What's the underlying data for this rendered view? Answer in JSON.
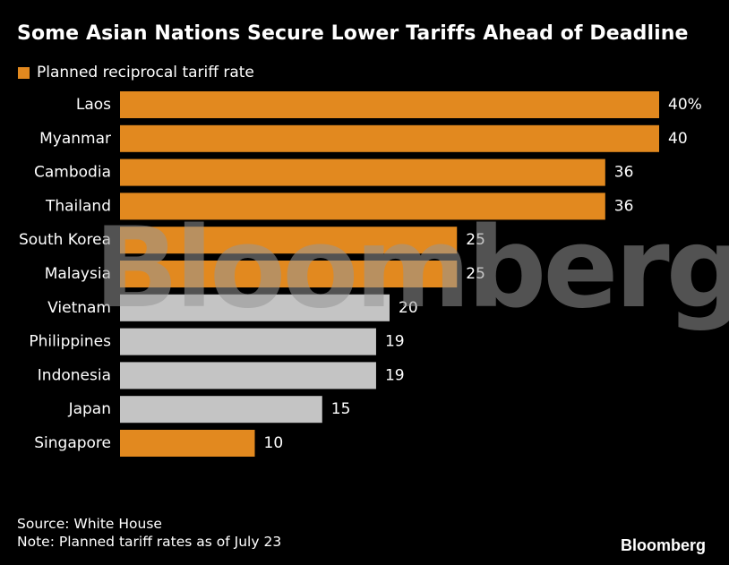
{
  "title": "Some Asian Nations Secure Lower Tariffs Ahead of Deadline",
  "legend": {
    "label": "Planned reciprocal tariff rate",
    "color": "#e2891f"
  },
  "watermark": "Bloomberg",
  "footer": {
    "source": "Source: White House",
    "note": "Note: Planned tariff rates as of July 23"
  },
  "brand": "Bloomberg",
  "colors": {
    "orange": "#e2891f",
    "gray": "#c4c4c4",
    "background": "#000000"
  },
  "chart_data": {
    "type": "bar",
    "orientation": "horizontal",
    "categories": [
      "Laos",
      "Myanmar",
      "Cambodia",
      "Thailand",
      "South Korea",
      "Malaysia",
      "Vietnam",
      "Philippines",
      "Indonesia",
      "Japan",
      "Singapore"
    ],
    "series": [
      {
        "name": "Planned reciprocal tariff rate",
        "values": [
          40,
          40,
          36,
          36,
          25,
          25,
          20,
          19,
          19,
          15,
          10
        ]
      }
    ],
    "value_labels": [
      "40%",
      "40",
      "36",
      "36",
      "25",
      "25",
      "20",
      "19",
      "19",
      "15",
      "10"
    ],
    "bar_colors": [
      "orange",
      "orange",
      "orange",
      "orange",
      "orange",
      "orange",
      "gray",
      "gray",
      "gray",
      "gray",
      "orange"
    ],
    "xlim": [
      0,
      40
    ],
    "grid": false,
    "legend_position": "top-left"
  }
}
